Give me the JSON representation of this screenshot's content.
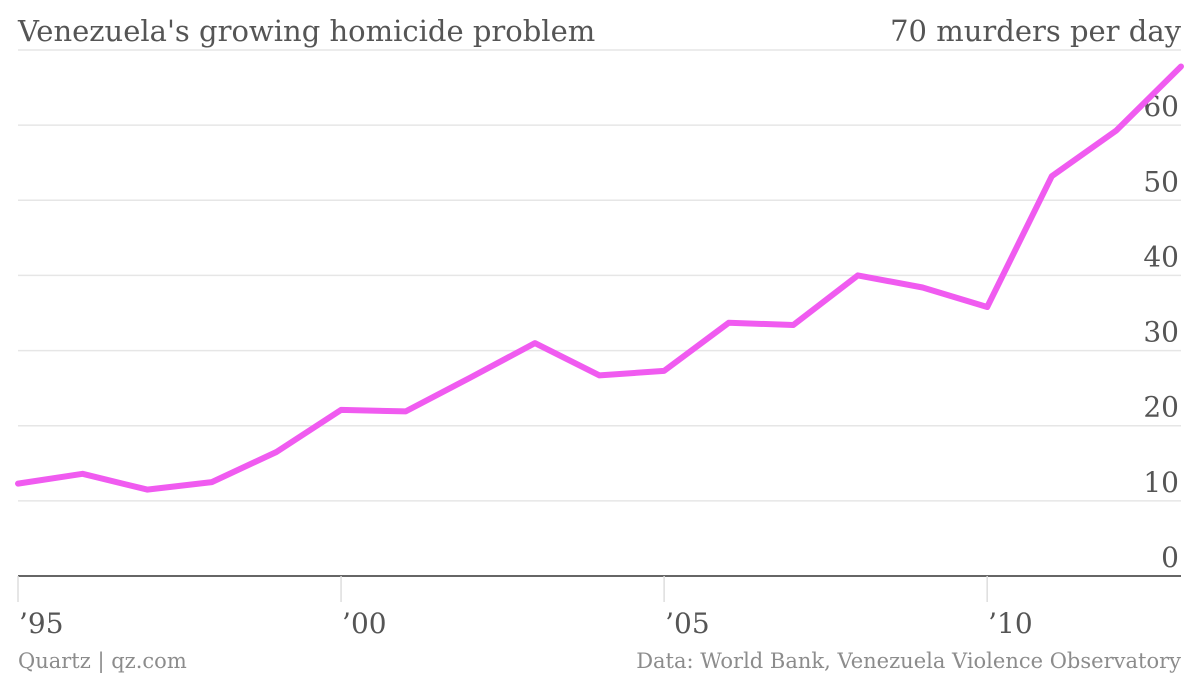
{
  "chart_data": {
    "type": "line",
    "title": "Venezuela's growing homicide problem",
    "ylabel": "70 murders per day",
    "xlabel": "",
    "x": [
      1995,
      1996,
      1997,
      1998,
      1999,
      2000,
      2001,
      2002,
      2003,
      2004,
      2005,
      2006,
      2007,
      2008,
      2009,
      2010,
      2011,
      2012,
      2013
    ],
    "series": [
      {
        "values": [
          12.3,
          13.6,
          11.5,
          12.5,
          16.5,
          22.1,
          21.9,
          26.4,
          31.0,
          26.7,
          27.3,
          33.7,
          33.4,
          40.0,
          38.4,
          35.8,
          53.2,
          59.3,
          67.8
        ]
      }
    ],
    "xlim": [
      1995,
      2013
    ],
    "ylim": [
      0,
      70
    ],
    "x_ticks": [
      1995,
      2000,
      2005,
      2010
    ],
    "x_tick_labels": [
      "’95",
      "’00",
      "’05",
      "’10"
    ],
    "y_ticks": [
      0,
      10,
      20,
      30,
      40,
      50,
      60
    ],
    "y_tick_labels": [
      "0",
      "10",
      "20",
      "30",
      "40",
      "50",
      "60"
    ],
    "grid": true,
    "line_color": "#f05bf0",
    "gridline_color": "#e6e6e6",
    "axis_color": "#333333"
  },
  "footer": {
    "credit": "Quartz | qz.com",
    "source": "Data: World Bank, Venezuela Violence Observatory"
  }
}
